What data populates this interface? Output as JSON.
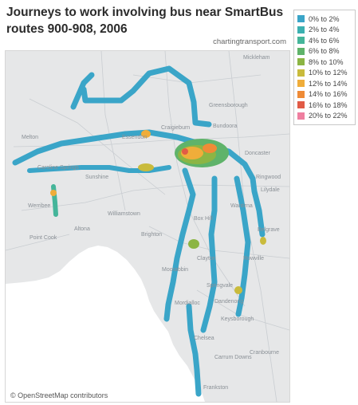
{
  "title": "Journeys to work involving bus near SmartBus routes 900-908, 2006",
  "source": "chartingtransport.com",
  "attribution": "© OpenStreetMap contributors",
  "legend": [
    {
      "label": "0% to 2%",
      "color": "#3aa5c8"
    },
    {
      "label": "2% to 4%",
      "color": "#3bb0b0"
    },
    {
      "label": "4% to 6%",
      "color": "#45b59a"
    },
    {
      "label": "6% to 8%",
      "color": "#5fb36a"
    },
    {
      "label": "8% to 10%",
      "color": "#8cb544"
    },
    {
      "label": "10% to 12%",
      "color": "#c9bb3c"
    },
    {
      "label": "12% to 14%",
      "color": "#efad3a"
    },
    {
      "label": "14% to 16%",
      "color": "#ef8b36"
    },
    {
      "label": "16% to 18%",
      "color": "#e15b46"
    },
    {
      "label": "20% to 22%",
      "color": "#ef7fa0"
    }
  ],
  "place_labels": [
    "Mickleham",
    "Melton",
    "Caroline Springs",
    "Werribee",
    "Craigieburn",
    "Bundoora",
    "Box Hill",
    "Doncaster",
    "Ringwood",
    "Frankston",
    "Dandenong",
    "Springvale",
    "Mordialloc",
    "Altona",
    "Sunshine",
    "Essendon",
    "Williamstown",
    "Greensborough",
    "Lilydale",
    "Cranbourne",
    "Belgrave",
    "Rowville",
    "Carrum Downs",
    "Point Cook",
    "Brighton",
    "Clayton",
    "Keysborough",
    "Chelsea",
    "Moorabbin",
    "Wantirna"
  ]
}
